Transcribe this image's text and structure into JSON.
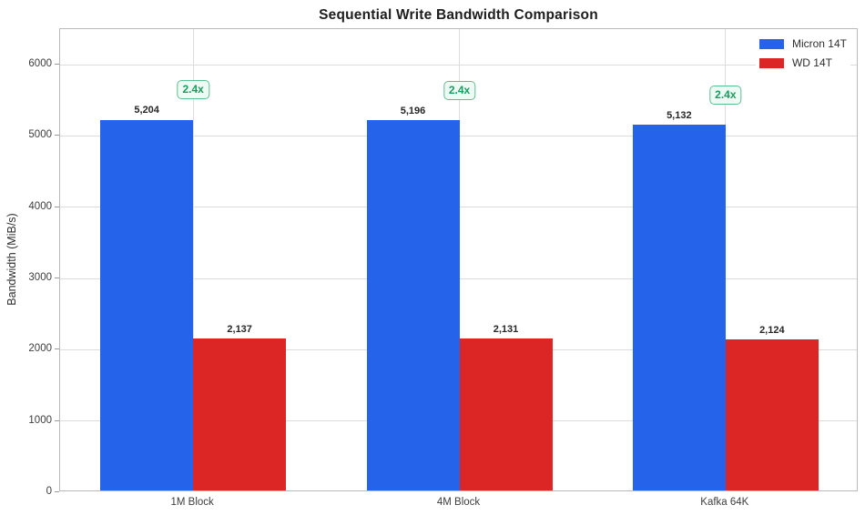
{
  "chart_data": {
    "type": "bar",
    "title": "Sequential Write Bandwidth Comparison",
    "xlabel": "",
    "ylabel": "Bandwidth (MiB/s)",
    "categories": [
      "1M Block",
      "4M Block",
      "Kafka 64K"
    ],
    "series": [
      {
        "name": "Micron 14T",
        "color": "#2563eb",
        "values": [
          5204,
          5196,
          5132
        ],
        "value_labels": [
          "5,204",
          "5,196",
          "5,132"
        ]
      },
      {
        "name": "WD 14T",
        "color": "#dc2626",
        "values": [
          2137,
          2131,
          2124
        ],
        "value_labels": [
          "2,137",
          "2,131",
          "2,124"
        ]
      }
    ],
    "annotations": [
      "2.4x",
      "2.4x",
      "2.4x"
    ],
    "annotation_color": "#12a05f",
    "ylim": [
      0,
      6500
    ],
    "yticks": [
      0,
      1000,
      2000,
      3000,
      4000,
      5000,
      6000
    ],
    "ytick_labels": [
      "0",
      "1000",
      "2000",
      "3000",
      "4000",
      "5000",
      "6000"
    ],
    "grid": true,
    "legend_position": "upper right"
  }
}
